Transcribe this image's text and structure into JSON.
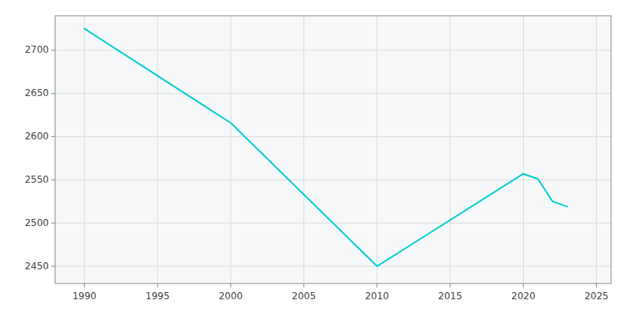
{
  "chart_data": {
    "type": "line",
    "x": [
      1990,
      2000,
      2010,
      2020,
      2021,
      2022,
      2023
    ],
    "values": [
      2725,
      2616,
      2450,
      2557,
      2551,
      2525,
      2519
    ],
    "color": "#00CED1",
    "xlim": [
      1988,
      2026
    ],
    "ylim": [
      2430,
      2740
    ],
    "xticks": [
      1990,
      1995,
      2000,
      2005,
      2010,
      2015,
      2020,
      2025
    ],
    "yticks": [
      2450,
      2500,
      2550,
      2600,
      2650,
      2700
    ],
    "grid": true
  }
}
